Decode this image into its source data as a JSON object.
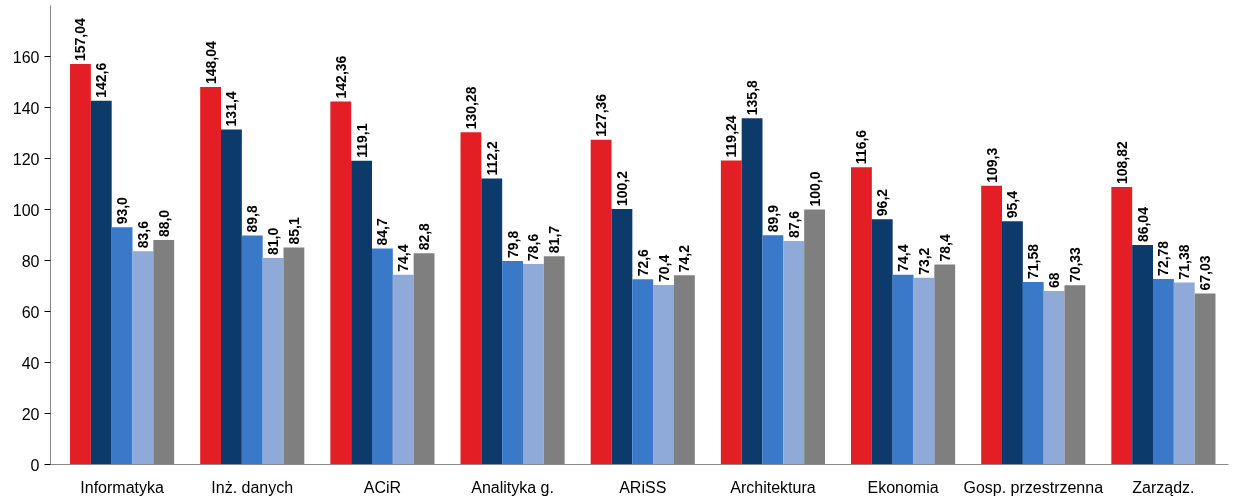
{
  "chart_data": {
    "type": "bar",
    "categories": [
      "Informatyka",
      "Inż. danych",
      "ACiR",
      "Analityka g.",
      "ARiSS",
      "Architektura",
      "Ekonomia",
      "Gosp. przestrzenna",
      "Zarządz."
    ],
    "series": [
      {
        "color": "#e31e24",
        "values": [
          157.04,
          148.04,
          142.36,
          130.28,
          127.36,
          119.24,
          116.6,
          109.3,
          108.82
        ],
        "value_labels": [
          "157,04",
          "148,04",
          "142,36",
          "130,28",
          "127,36",
          "119,24",
          "116,6",
          "109,3",
          "108,82"
        ]
      },
      {
        "color": "#0b3a6b",
        "values": [
          142.6,
          131.4,
          119.1,
          112.2,
          100.2,
          135.8,
          96.2,
          95.4,
          86.04
        ],
        "value_labels": [
          "142,6",
          "131,4",
          "119,1",
          "112,2",
          "100,2",
          "135,8",
          "96,2",
          "95,4",
          "86,04"
        ]
      },
      {
        "color": "#3a78c8",
        "values": [
          93.0,
          89.8,
          84.7,
          79.8,
          72.6,
          89.9,
          74.4,
          71.58,
          72.78
        ],
        "value_labels": [
          "93,0",
          "89,8",
          "84,7",
          "79,8",
          "72,6",
          "89,9",
          "74,4",
          "71,58",
          "72,78"
        ]
      },
      {
        "color": "#8fa9d8",
        "values": [
          83.6,
          81.0,
          74.4,
          78.6,
          70.4,
          87.6,
          73.2,
          68,
          71.38
        ],
        "value_labels": [
          "83,6",
          "81,0",
          "74,4",
          "78,6",
          "70,4",
          "87,6",
          "73,2",
          "68",
          "71,38"
        ]
      },
      {
        "color": "#7f7f7f",
        "values": [
          88.0,
          85.1,
          82.8,
          81.7,
          74.2,
          100.0,
          78.4,
          70.33,
          67.03
        ],
        "value_labels": [
          "88,0",
          "85,1",
          "82,8",
          "81,7",
          "74,2",
          "100,0",
          "78,4",
          "70,33",
          "67,03"
        ]
      }
    ],
    "ylim": [
      0,
      180
    ],
    "yticks": [
      0,
      20,
      40,
      60,
      80,
      100,
      120,
      140,
      160
    ],
    "grid": false
  }
}
